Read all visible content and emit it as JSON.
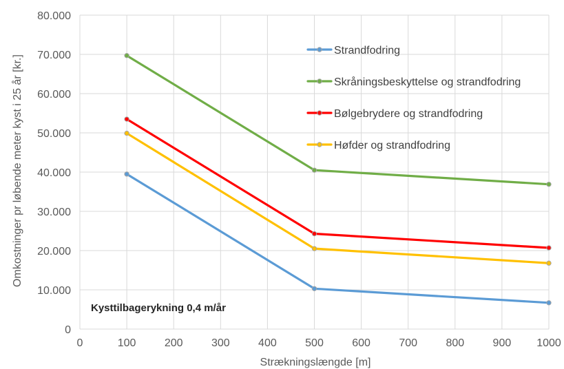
{
  "chart_data": {
    "type": "line",
    "xlabel": "Strækningslængde [m]",
    "ylabel": "Omkostninger pr løbende meter kyst i 25 år [kr.]",
    "xlim": [
      0,
      1000
    ],
    "ylim": [
      0,
      80000
    ],
    "x_ticks": [
      "0",
      "100",
      "200",
      "300",
      "400",
      "500",
      "600",
      "700",
      "800",
      "900",
      "1000"
    ],
    "y_ticks": [
      "0",
      "10.000",
      "20.000",
      "30.000",
      "40.000",
      "50.000",
      "60.000",
      "70.000",
      "80.000"
    ],
    "grid": true,
    "legend_position": "top-right",
    "annotation": "Kysttilbagerykning 0,4 m/år",
    "x": [
      100,
      500,
      1000
    ],
    "series": [
      {
        "name": "Strandfodring",
        "color": "#5b9bd5",
        "values": [
          39500,
          10300,
          6700
        ]
      },
      {
        "name": "Skråningsbeskyttelse og strandfodring",
        "color": "#70ad47",
        "values": [
          69700,
          40500,
          36900
        ]
      },
      {
        "name": "Bølgebrydere og strandfodring",
        "color": "#ff0000",
        "values": [
          53500,
          24300,
          20700
        ]
      },
      {
        "name": "Høfder og strandfodring",
        "color": "#ffc000",
        "values": [
          49900,
          20500,
          16800
        ]
      }
    ]
  }
}
